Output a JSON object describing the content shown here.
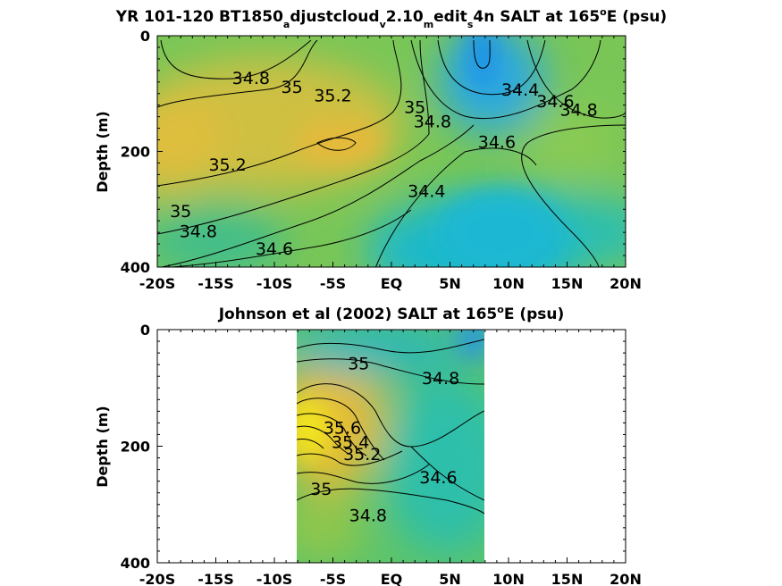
{
  "colors": {
    "high_salinity": "#f2e61e",
    "mid_high": "#d4b93a",
    "mid": "#7cc856",
    "mid_low": "#2dbfae",
    "low_salinity": "#2196e6",
    "axis": "#000000"
  },
  "chart_data": [
    {
      "type": "heatmap",
      "title_parts": {
        "a": "YR 101-120 BT1850",
        "b": "a",
        "c": "djustcloud",
        "d": "v",
        "e": "2.10",
        "f": "m",
        "g": "edit",
        "h": "s",
        "i": "4n SALT at 165",
        "j": "o",
        "k": "E (psu)"
      },
      "ylabel": "Depth (m)",
      "xlim": [
        -20,
        20
      ],
      "ylim": [
        0,
        400
      ],
      "y_reversed": true,
      "x_ticks": [
        {
          "value": -20,
          "label": "-20S"
        },
        {
          "value": -15,
          "label": "-15S"
        },
        {
          "value": -10,
          "label": "-10S"
        },
        {
          "value": -5,
          "label": "-5S"
        },
        {
          "value": 0,
          "label": "EQ"
        },
        {
          "value": 5,
          "label": "5N"
        },
        {
          "value": 10,
          "label": "10N"
        },
        {
          "value": 15,
          "label": "15N"
        },
        {
          "value": 20,
          "label": "20N"
        }
      ],
      "y_ticks": [
        {
          "value": 0,
          "label": "0"
        },
        {
          "value": 200,
          "label": "200"
        },
        {
          "value": 400,
          "label": "400"
        }
      ],
      "contour_labels": [
        {
          "text": "34.8",
          "x": -12,
          "y": 75
        },
        {
          "text": "35",
          "x": -8.5,
          "y": 90
        },
        {
          "text": "35.2",
          "x": -5,
          "y": 105
        },
        {
          "text": "35",
          "x": 2,
          "y": 125
        },
        {
          "text": "34.8",
          "x": 3.5,
          "y": 150
        },
        {
          "text": "34.4",
          "x": 11,
          "y": 95
        },
        {
          "text": "34.6",
          "x": 14,
          "y": 115
        },
        {
          "text": "34.8",
          "x": 16,
          "y": 130
        },
        {
          "text": "34.6",
          "x": 9,
          "y": 185
        },
        {
          "text": "35.2",
          "x": -14,
          "y": 225
        },
        {
          "text": "34.4",
          "x": 3,
          "y": 270
        },
        {
          "text": "35",
          "x": -18,
          "y": 305
        },
        {
          "text": "34.8",
          "x": -16.5,
          "y": 340
        },
        {
          "text": "34.6",
          "x": -10,
          "y": 370
        }
      ]
    },
    {
      "type": "heatmap",
      "title_parts": {
        "a": "Johnson et al (2002) SALT at 165",
        "b": "o",
        "c": "E (psu)"
      },
      "ylabel": "Depth (m)",
      "xlim": [
        -20,
        20
      ],
      "ylim": [
        0,
        400
      ],
      "y_reversed": true,
      "data_xrange": [
        -8,
        8
      ],
      "x_ticks": [
        {
          "value": -20,
          "label": "-20S"
        },
        {
          "value": -15,
          "label": "-15S"
        },
        {
          "value": -10,
          "label": "-10S"
        },
        {
          "value": -5,
          "label": "-5S"
        },
        {
          "value": 0,
          "label": "EQ"
        },
        {
          "value": 5,
          "label": "5N"
        },
        {
          "value": 10,
          "label": "10N"
        },
        {
          "value": 15,
          "label": "15N"
        },
        {
          "value": 20,
          "label": "20N"
        }
      ],
      "y_ticks": [
        {
          "value": 0,
          "label": "0"
        },
        {
          "value": 200,
          "label": "200"
        },
        {
          "value": 400,
          "label": "400"
        }
      ],
      "contour_labels": [
        {
          "text": "35",
          "x": -2.8,
          "y": 60
        },
        {
          "text": "34.8",
          "x": 4.2,
          "y": 85
        },
        {
          "text": "35.6",
          "x": -4.2,
          "y": 170
        },
        {
          "text": "35.4",
          "x": -3.5,
          "y": 195
        },
        {
          "text": "35.2",
          "x": -2.5,
          "y": 215
        },
        {
          "text": "34.6",
          "x": 4,
          "y": 255
        },
        {
          "text": "35",
          "x": -6,
          "y": 275
        },
        {
          "text": "34.8",
          "x": -2,
          "y": 320
        }
      ]
    }
  ]
}
